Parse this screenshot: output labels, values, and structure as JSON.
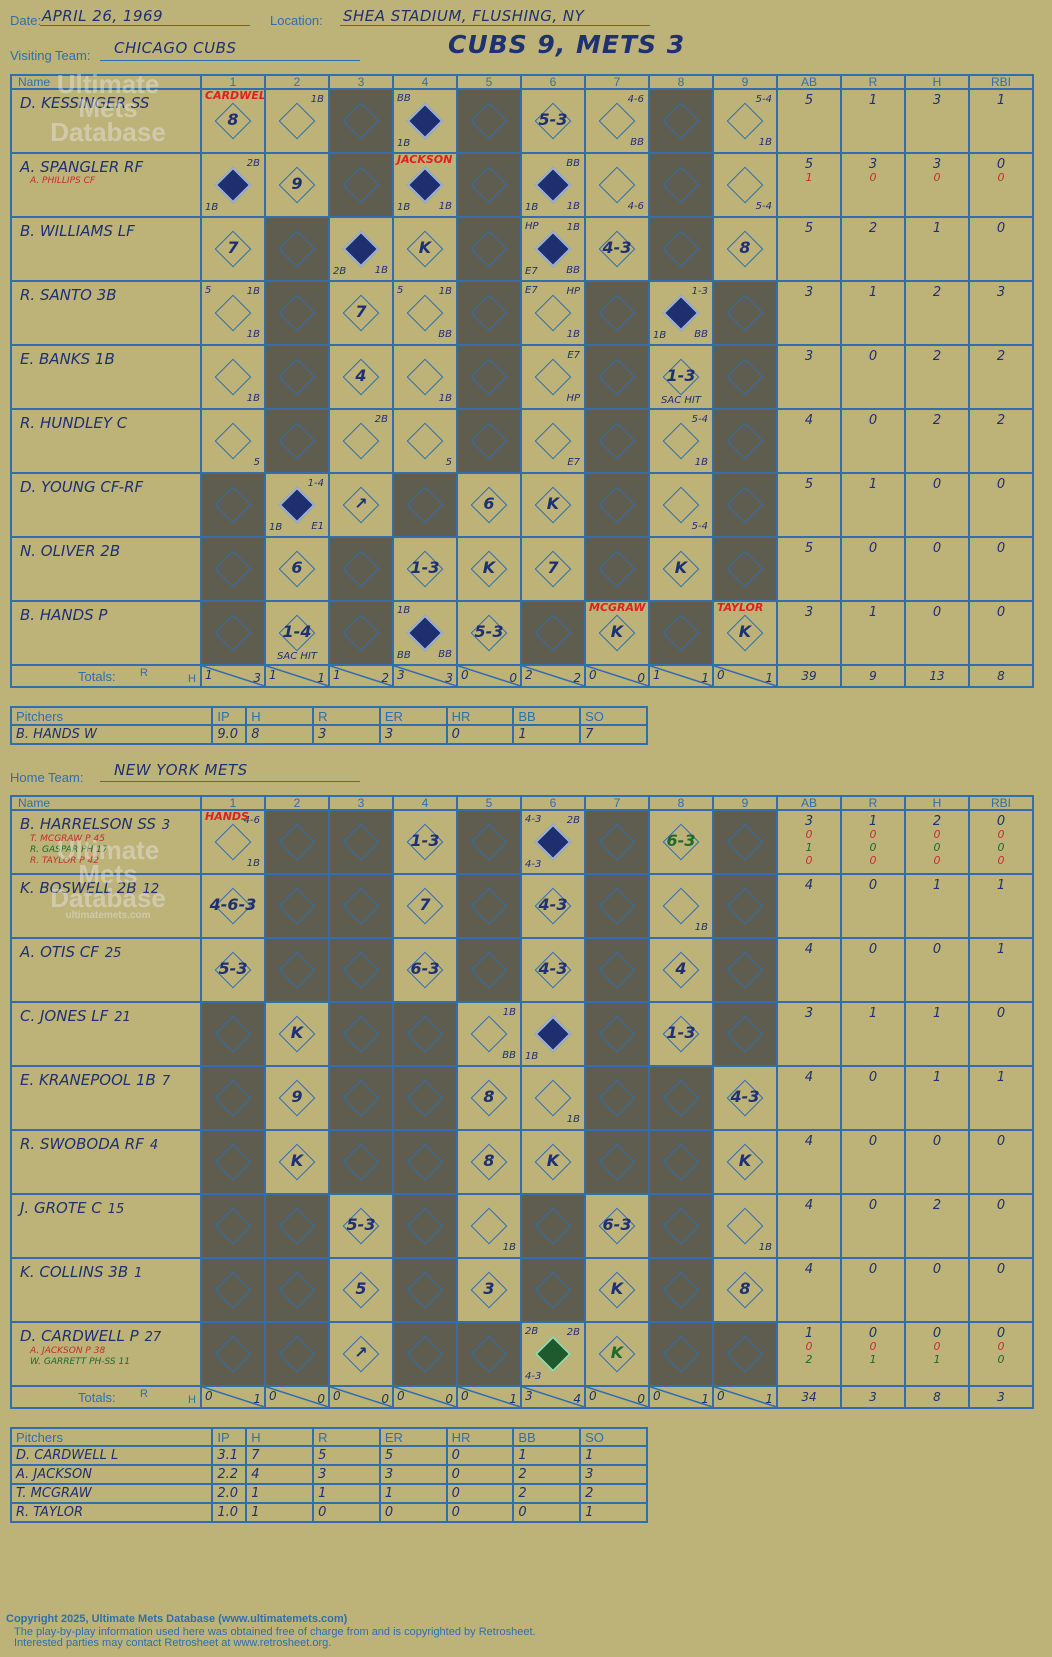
{
  "header": {
    "date_label": "Date:",
    "date": "APRIL 26, 1969",
    "location_label": "Location:",
    "location": "SHEA STADIUM, FLUSHING, NY",
    "visiting_label": "Visiting Team:",
    "visiting_team": "CHICAGO CUBS",
    "score_title": "CUBS 9, METS 3"
  },
  "columns": {
    "name": "Name",
    "innings": [
      "1",
      "2",
      "3",
      "4",
      "5",
      "6",
      "7",
      "8",
      "9"
    ],
    "stats": [
      "AB",
      "R",
      "H",
      "RBI"
    ],
    "totals": "Totals:",
    "r": "R",
    "h": "H"
  },
  "visitors": {
    "players": [
      {
        "name": "D. KESSINGER SS",
        "subs": [],
        "stats": [
          [
            "5"
          ],
          [
            "1"
          ],
          [
            "3"
          ],
          [
            "1"
          ]
        ]
      },
      {
        "name": "A. SPANGLER RF",
        "subs": [
          "A. PHILLIPS CF"
        ],
        "stats": [
          [
            "5",
            "1"
          ],
          [
            "3",
            "0"
          ],
          [
            "3",
            "0"
          ],
          [
            "0",
            "0"
          ]
        ]
      },
      {
        "name": "B. WILLIAMS LF",
        "subs": [],
        "stats": [
          [
            "5"
          ],
          [
            "2"
          ],
          [
            "1"
          ],
          [
            "0"
          ]
        ]
      },
      {
        "name": "R. SANTO 3B",
        "subs": [],
        "stats": [
          [
            "3"
          ],
          [
            "1"
          ],
          [
            "2"
          ],
          [
            "3"
          ]
        ]
      },
      {
        "name": "E. BANKS 1B",
        "subs": [],
        "stats": [
          [
            "3"
          ],
          [
            "0"
          ],
          [
            "2"
          ],
          [
            "2"
          ]
        ]
      },
      {
        "name": "R. HUNDLEY C",
        "subs": [],
        "stats": [
          [
            "4"
          ],
          [
            "0"
          ],
          [
            "2"
          ],
          [
            "2"
          ]
        ]
      },
      {
        "name": "D. YOUNG CF-RF",
        "subs": [],
        "stats": [
          [
            "5"
          ],
          [
            "1"
          ],
          [
            "0"
          ],
          [
            "0"
          ]
        ]
      },
      {
        "name": "N. OLIVER 2B",
        "subs": [],
        "stats": [
          [
            "5"
          ],
          [
            "0"
          ],
          [
            "0"
          ],
          [
            "0"
          ]
        ]
      },
      {
        "name": "B. HANDS P",
        "subs": [],
        "stats": [
          [
            "3"
          ],
          [
            "1"
          ],
          [
            "0"
          ],
          [
            "0"
          ]
        ]
      }
    ],
    "totals_rh": [
      [
        "1",
        "3"
      ],
      [
        "1",
        "1"
      ],
      [
        "1",
        "2"
      ],
      [
        "3",
        "3"
      ],
      [
        "0",
        "0"
      ],
      [
        "2",
        "2"
      ],
      [
        "0",
        "0"
      ],
      [
        "1",
        "1"
      ],
      [
        "0",
        "1"
      ]
    ],
    "totals_stats": [
      "39",
      "9",
      "13",
      "8"
    ],
    "pitchers_header": [
      "Pitchers",
      "IP",
      "H",
      "R",
      "ER",
      "HR",
      "BB",
      "SO"
    ],
    "pitchers": [
      [
        "B. HANDS  W",
        "9.0",
        "8",
        "3",
        "3",
        "0",
        "1",
        "7"
      ]
    ]
  },
  "home": {
    "label": "Home Team:",
    "team": "NEW YORK METS",
    "players": [
      {
        "name": "B. HARRELSON SS",
        "num": "3",
        "subs": [
          "T. MCGRAW P  45",
          "R. GASPAR PH  17",
          "R. TAYLOR P  42"
        ],
        "stats": [
          [
            "3",
            "0",
            "1",
            "0"
          ],
          [
            "1",
            "0",
            "0",
            "0"
          ],
          [
            "2",
            "0",
            "0",
            "0"
          ],
          [
            "0",
            "0",
            "0",
            "0"
          ]
        ]
      },
      {
        "name": "K. BOSWELL 2B",
        "num": "12",
        "subs": [],
        "stats": [
          [
            "4"
          ],
          [
            "0"
          ],
          [
            "1"
          ],
          [
            "1"
          ]
        ]
      },
      {
        "name": "A. OTIS CF",
        "num": "25",
        "subs": [],
        "stats": [
          [
            "4"
          ],
          [
            "0"
          ],
          [
            "0"
          ],
          [
            "1"
          ]
        ]
      },
      {
        "name": "C. JONES LF",
        "num": "21",
        "subs": [],
        "stats": [
          [
            "3"
          ],
          [
            "1"
          ],
          [
            "1"
          ],
          [
            "0"
          ]
        ]
      },
      {
        "name": "E. KRANEPOOL 1B",
        "num": "7",
        "subs": [],
        "stats": [
          [
            "4"
          ],
          [
            "0"
          ],
          [
            "1"
          ],
          [
            "1"
          ]
        ]
      },
      {
        "name": "R. SWOBODA RF",
        "num": "4",
        "subs": [],
        "stats": [
          [
            "4"
          ],
          [
            "0"
          ],
          [
            "0"
          ],
          [
            "0"
          ]
        ]
      },
      {
        "name": "J. GROTE C",
        "num": "15",
        "subs": [],
        "stats": [
          [
            "4"
          ],
          [
            "0"
          ],
          [
            "2"
          ],
          [
            "0"
          ]
        ]
      },
      {
        "name": "K. COLLINS 3B",
        "num": "1",
        "subs": [],
        "stats": [
          [
            "4"
          ],
          [
            "0"
          ],
          [
            "0"
          ],
          [
            "0"
          ]
        ]
      },
      {
        "name": "D. CARDWELL P",
        "num": "27",
        "subs": [
          "A. JACKSON P  38",
          "W. GARRETT PH-SS  11"
        ],
        "stats": [
          [
            "1",
            "0",
            "2"
          ],
          [
            "0",
            "0",
            "1"
          ],
          [
            "0",
            "0",
            "1"
          ],
          [
            "0",
            "0",
            "0"
          ]
        ]
      }
    ],
    "totals_rh": [
      [
        "0",
        "1"
      ],
      [
        "0",
        "0"
      ],
      [
        "0",
        "0"
      ],
      [
        "0",
        "0"
      ],
      [
        "0",
        "1"
      ],
      [
        "3",
        "4"
      ],
      [
        "0",
        "0"
      ],
      [
        "0",
        "1"
      ],
      [
        "0",
        "1"
      ]
    ],
    "totals_stats": [
      "34",
      "3",
      "8",
      "3"
    ],
    "pitchers_header": [
      "Pitchers",
      "IP",
      "H",
      "R",
      "ER",
      "HR",
      "BB",
      "SO"
    ],
    "pitchers": [
      [
        "D. CARDWELL  L",
        "3.1",
        "7",
        "5",
        "5",
        "0",
        "1",
        "1"
      ],
      [
        "A. JACKSON",
        "2.2",
        "4",
        "3",
        "3",
        "0",
        "2",
        "3"
      ],
      [
        "T. MCGRAW",
        "2.0",
        "1",
        "1",
        "1",
        "0",
        "2",
        "2"
      ],
      [
        "R. TAYLOR",
        "1.0",
        "1",
        "0",
        "0",
        "0",
        "0",
        "1"
      ]
    ]
  },
  "visitor_grid": [
    [
      {
        "r": "8",
        "t": "CARDWELL"
      },
      {
        "tr": "1B"
      },
      {
        "s": 1
      },
      {
        "d": 1,
        "tl": "BB",
        "bl": "1B"
      },
      {
        "s": 1
      },
      {
        "r": "5-3"
      },
      {
        "tr": "4-6",
        "br": "BB"
      },
      {
        "s": 1
      },
      {
        "tr": "5-4",
        "br": "1B"
      }
    ],
    [
      {
        "d": 1,
        "tr": "2B",
        "bl": "1B"
      },
      {
        "r": "9"
      },
      {
        "s": 1
      },
      {
        "d": 1,
        "t": "JACKSON",
        "bl": "1B",
        "br": "1B"
      },
      {
        "s": 1
      },
      {
        "d": 1,
        "tr": "BB",
        "bl": "1B",
        "br": "1B"
      },
      {
        "br": "4-6"
      },
      {
        "s": 1
      },
      {
        "br": "5-4"
      }
    ],
    [
      {
        "r": "7"
      },
      {
        "s": 1
      },
      {
        "d": 1,
        "bl": "2B",
        "br": "1B"
      },
      {
        "r": "K"
      },
      {
        "s": 1
      },
      {
        "d": 1,
        "tl": "HP",
        "tr": "1B",
        "bl": "E7",
        "br": "BB"
      },
      {
        "r": "4-3"
      },
      {
        "s": 1
      },
      {
        "r": "8"
      }
    ],
    [
      {
        "tl": "5",
        "tr": "1B",
        "br": "1B"
      },
      {
        "s": 1
      },
      {
        "r": "7"
      },
      {
        "tl": "5",
        "tr": "1B",
        "br": "BB"
      },
      {
        "s": 1
      },
      {
        "tl": "E7",
        "tr": "HP",
        "br": "1B"
      },
      {
        "s": 1
      },
      {
        "d": 1,
        "tr": "1-3",
        "bl": "1B",
        "br": "BB"
      },
      {
        "s": 1
      }
    ],
    [
      {
        "br": "1B"
      },
      {
        "s": 1
      },
      {
        "r": "4"
      },
      {
        "br": "1B"
      },
      {
        "s": 1
      },
      {
        "tr": "E7",
        "br": "HP"
      },
      {
        "s": 1
      },
      {
        "r": "1-3",
        "b": "SAC HIT"
      },
      {
        "s": 1
      }
    ],
    [
      {
        "br": "5"
      },
      {
        "s": 1
      },
      {
        "tr": "2B"
      },
      {
        "br": "5"
      },
      {
        "s": 1
      },
      {
        "br": "E7"
      },
      {
        "s": 1
      },
      {
        "tr": "5-4",
        "br": "1B"
      },
      {
        "s": 1
      }
    ],
    [
      {
        "s": 1
      },
      {
        "d": 1,
        "tr": "1-4",
        "bl": "1B",
        "br": "E1"
      },
      {
        "r": "↗"
      },
      {
        "s": 1
      },
      {
        "r": "6"
      },
      {
        "r": "K"
      },
      {
        "s": 1
      },
      {
        "br": "5-4"
      },
      {
        "s": 1
      }
    ],
    [
      {
        "s": 1
      },
      {
        "r": "6"
      },
      {
        "s": 1
      },
      {
        "r": "1-3"
      },
      {
        "r": "K"
      },
      {
        "r": "7"
      },
      {
        "s": 1
      },
      {
        "r": "K"
      },
      {
        "s": 1
      }
    ],
    [
      {
        "s": 1
      },
      {
        "r": "1-4",
        "b": "SAC HIT"
      },
      {
        "s": 1
      },
      {
        "d": 1,
        "tl": "1B",
        "bl": "BB",
        "br": "BB"
      },
      {
        "r": "5-3"
      },
      {
        "s": 1
      },
      {
        "r": "K",
        "t": "MCGRAW"
      },
      {
        "s": 1
      },
      {
        "r": "K",
        "t": "TAYLOR"
      }
    ]
  ],
  "home_grid": [
    [
      {
        "t": "HANDS",
        "tr": "4-6",
        "br": "1B"
      },
      {
        "s": 1
      },
      {
        "s": 1
      },
      {
        "r": "1-3"
      },
      {
        "s": 1
      },
      {
        "d": 1,
        "tl": "4-3",
        "tr": "2B",
        "bl": "4-3"
      },
      {
        "s": 1
      },
      {
        "r": "6-3",
        "g": 1
      },
      {
        "s": 1
      }
    ],
    [
      {
        "r": "4-6-3"
      },
      {
        "s": 1
      },
      {
        "s": 1
      },
      {
        "r": "7"
      },
      {
        "s": 1
      },
      {
        "r": "4-3"
      },
      {
        "s": 1
      },
      {
        "br": "1B"
      },
      {
        "s": 1
      }
    ],
    [
      {
        "r": "5-3"
      },
      {
        "s": 1
      },
      {
        "s": 1
      },
      {
        "r": "6-3"
      },
      {
        "s": 1
      },
      {
        "r": "4-3"
      },
      {
        "s": 1
      },
      {
        "r": "4"
      },
      {
        "s": 1
      }
    ],
    [
      {
        "s": 1
      },
      {
        "r": "K"
      },
      {
        "s": 1
      },
      {
        "s": 1
      },
      {
        "tr": "1B",
        "br": "BB"
      },
      {
        "d": 1,
        "bl": "1B"
      },
      {
        "s": 1
      },
      {
        "r": "1-3"
      },
      {
        "s": 1
      }
    ],
    [
      {
        "s": 1
      },
      {
        "r": "9"
      },
      {
        "s": 1
      },
      {
        "s": 1
      },
      {
        "r": "8"
      },
      {
        "br": "1B"
      },
      {
        "s": 1
      },
      {
        "s": 1
      },
      {
        "r": "4-3"
      }
    ],
    [
      {
        "s": 1
      },
      {
        "r": "K"
      },
      {
        "s": 1
      },
      {
        "s": 1
      },
      {
        "r": "8"
      },
      {
        "r": "K"
      },
      {
        "s": 1
      },
      {
        "s": 1
      },
      {
        "r": "K"
      }
    ],
    [
      {
        "s": 1
      },
      {
        "s": 1
      },
      {
        "r": "5-3"
      },
      {
        "s": 1
      },
      {
        "br": "1B"
      },
      {
        "s": 1
      },
      {
        "r": "6-3"
      },
      {
        "s": 1
      },
      {
        "br": "1B"
      }
    ],
    [
      {
        "s": 1
      },
      {
        "s": 1
      },
      {
        "r": "5"
      },
      {
        "s": 1
      },
      {
        "r": "3"
      },
      {
        "s": 1
      },
      {
        "r": "K"
      },
      {
        "s": 1
      },
      {
        "r": "8"
      }
    ],
    [
      {
        "s": 1
      },
      {
        "s": 1
      },
      {
        "r": "↗"
      },
      {
        "s": 1
      },
      {
        "s": 1
      },
      {
        "d": 2,
        "tl": "2B",
        "tr": "2B",
        "bl": "4-3"
      },
      {
        "r": "K",
        "g": 1
      },
      {
        "s": 1
      },
      {
        "s": 1
      }
    ]
  ],
  "watermark": {
    "line1": "Ultimate",
    "line2": "Mets",
    "line3": "Database",
    "url": "ultimatemets.com"
  },
  "footer": {
    "copyright": "Copyright 2025, Ultimate Mets Database (www.ultimatemets.com)",
    "line2": "The play-by-play information used here was obtained free of charge from and is copyrighted by Retrosheet.",
    "line3": "Interested parties may contact Retrosheet at www.retrosheet.org."
  }
}
